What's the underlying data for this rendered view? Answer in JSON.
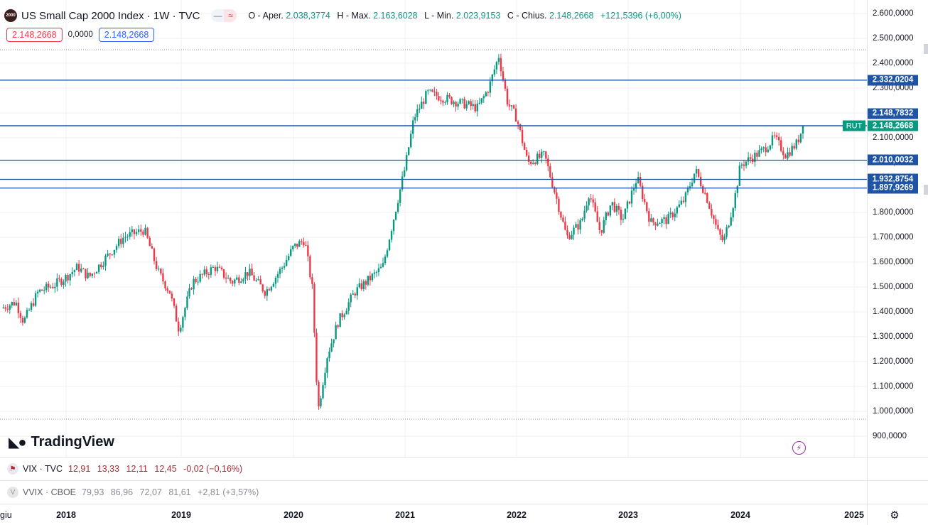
{
  "header": {
    "logo_text": "2000",
    "title": "US Small Cap 2000 Index · 1W · TVC",
    "minus_icon": "minus-icon",
    "wave_icon": "wave-icon",
    "open_label": "O - Aper.",
    "open": "2.038,3774",
    "high_label": "H - Max.",
    "high": "2.163,6028",
    "low_label": "L - Min.",
    "low": "2.023,9153",
    "close_label": "C - Chius.",
    "close": "2.148,2668",
    "change": "+121,5396 (+6,00%)"
  },
  "trade_boxes": {
    "sell": "2.148,2668",
    "spread": "0,0000",
    "buy": "2.148,2668"
  },
  "branding": {
    "name": "TradingView"
  },
  "indicators": {
    "vix": {
      "label": "VIX · TVC",
      "o": "12,91",
      "h": "13,33",
      "l": "12,11",
      "c": "12,45",
      "change": "-0,02 (−0,16%)"
    },
    "vvix": {
      "label": "VVIX · CBOE",
      "o": "79,93",
      "h": "86,96",
      "l": "72,07",
      "c": "81,61",
      "change": "+2,81 (+3,57%)"
    }
  },
  "colors": {
    "up": "#089981",
    "down": "#f23645",
    "level_line": "#1e53a5",
    "accent": "#2962ff"
  },
  "chart_data": {
    "type": "candlestick",
    "symbol": "RUT",
    "x_ticks": [
      "giu",
      "2018",
      "2019",
      "2020",
      "2021",
      "2022",
      "2023",
      "2024",
      "2025"
    ],
    "y_ticks": [
      "2.600,0000",
      "2.500,0000",
      "2.400,0000",
      "2.300,0000",
      "2.200,0000",
      "2.100,0000",
      "2.000,0000",
      "1.900,0000",
      "1.800,0000",
      "1.700,0000",
      "1.600,0000",
      "1.500,0000",
      "1.400,0000",
      "1.300,0000",
      "1.200,0000",
      "1.100,0000",
      "1.000,0000",
      "900,0000"
    ],
    "y_range": [
      870,
      2620
    ],
    "horizontal_levels": [
      {
        "value": 2332.0204,
        "label": "2.332,0204"
      },
      {
        "value": 2148.7832,
        "label": "2.148,7832"
      },
      {
        "value": 2010.0032,
        "label": "2.010,0032"
      },
      {
        "value": 1932.8754,
        "label": "1.932,8754"
      },
      {
        "value": 1897.9269,
        "label": "1.897,9269"
      }
    ],
    "last_price": {
      "value": 2148.2668,
      "label": "2.148,2668"
    },
    "approx_close_path": [
      [
        2017.42,
        1415
      ],
      [
        2017.55,
        1440
      ],
      [
        2017.62,
        1360
      ],
      [
        2017.75,
        1480
      ],
      [
        2017.9,
        1510
      ],
      [
        2018.0,
        1540
      ],
      [
        2018.1,
        1580
      ],
      [
        2018.2,
        1540
      ],
      [
        2018.35,
        1620
      ],
      [
        2018.5,
        1700
      ],
      [
        2018.68,
        1730
      ],
      [
        2018.8,
        1560
      ],
      [
        2018.9,
        1480
      ],
      [
        2018.98,
        1330
      ],
      [
        2019.1,
        1520
      ],
      [
        2019.3,
        1580
      ],
      [
        2019.45,
        1520
      ],
      [
        2019.6,
        1560
      ],
      [
        2019.75,
        1480
      ],
      [
        2019.9,
        1580
      ],
      [
        2020.0,
        1660
      ],
      [
        2020.1,
        1690
      ],
      [
        2020.17,
        1490
      ],
      [
        2020.22,
        1000
      ],
      [
        2020.3,
        1220
      ],
      [
        2020.4,
        1360
      ],
      [
        2020.55,
        1480
      ],
      [
        2020.7,
        1540
      ],
      [
        2020.8,
        1580
      ],
      [
        2020.9,
        1780
      ],
      [
        2021.0,
        1980
      ],
      [
        2021.08,
        2180
      ],
      [
        2021.2,
        2280
      ],
      [
        2021.35,
        2260
      ],
      [
        2021.5,
        2240
      ],
      [
        2021.65,
        2220
      ],
      [
        2021.75,
        2300
      ],
      [
        2021.84,
        2430
      ],
      [
        2021.92,
        2240
      ],
      [
        2022.0,
        2180
      ],
      [
        2022.1,
        2000
      ],
      [
        2022.25,
        2030
      ],
      [
        2022.35,
        1870
      ],
      [
        2022.45,
        1700
      ],
      [
        2022.58,
        1760
      ],
      [
        2022.65,
        1880
      ],
      [
        2022.75,
        1720
      ],
      [
        2022.85,
        1840
      ],
      [
        2022.95,
        1770
      ],
      [
        2023.08,
        1940
      ],
      [
        2023.2,
        1760
      ],
      [
        2023.35,
        1770
      ],
      [
        2023.5,
        1850
      ],
      [
        2023.6,
        1970
      ],
      [
        2023.7,
        1860
      ],
      [
        2023.8,
        1720
      ],
      [
        2023.85,
        1680
      ],
      [
        2023.95,
        1860
      ],
      [
        2024.0,
        1990
      ],
      [
        2024.1,
        2020
      ],
      [
        2024.2,
        2050
      ],
      [
        2024.3,
        2100
      ],
      [
        2024.4,
        2030
      ],
      [
        2024.5,
        2080
      ],
      [
        2024.55,
        2148.27
      ]
    ]
  }
}
